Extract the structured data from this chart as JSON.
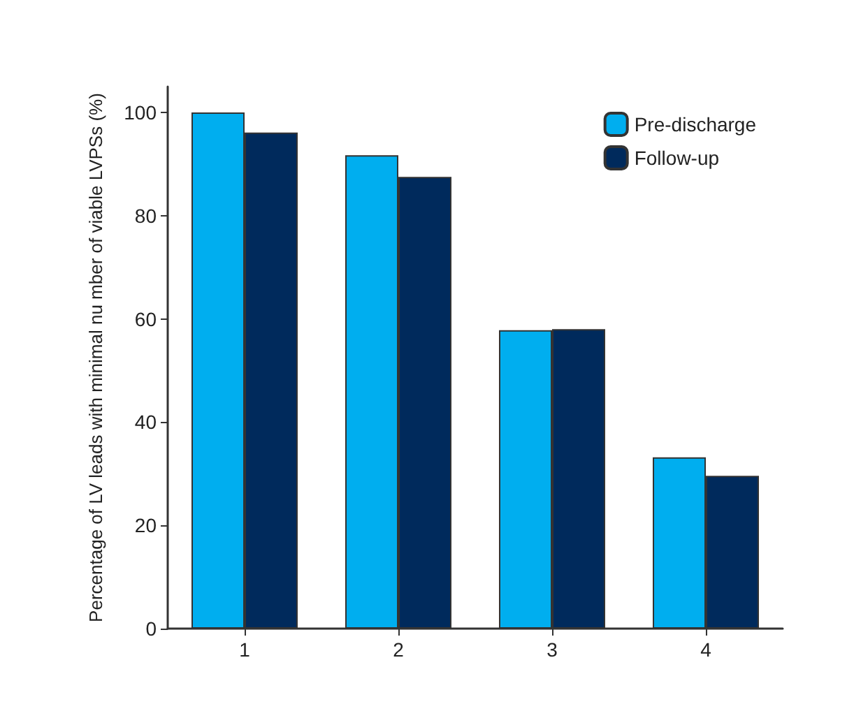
{
  "chart_data": {
    "type": "bar",
    "ylabel": "Percentage of LV leads with minimal nu mber of viable LVPSs (%)",
    "categories": [
      "1",
      "2",
      "3",
      "4"
    ],
    "series": [
      {
        "name": "Pre-discharge",
        "color": "#00aeef",
        "values": [
          100,
          91.7,
          57.8,
          33.2
        ]
      },
      {
        "name": "Follow-up",
        "color": "#002a5c",
        "values": [
          96.1,
          87.5,
          58.0,
          29.6
        ]
      }
    ],
    "ylim": [
      0,
      105
    ],
    "yticks": [
      0,
      20,
      40,
      60,
      80,
      100
    ],
    "grid": false,
    "legend": "top right"
  }
}
